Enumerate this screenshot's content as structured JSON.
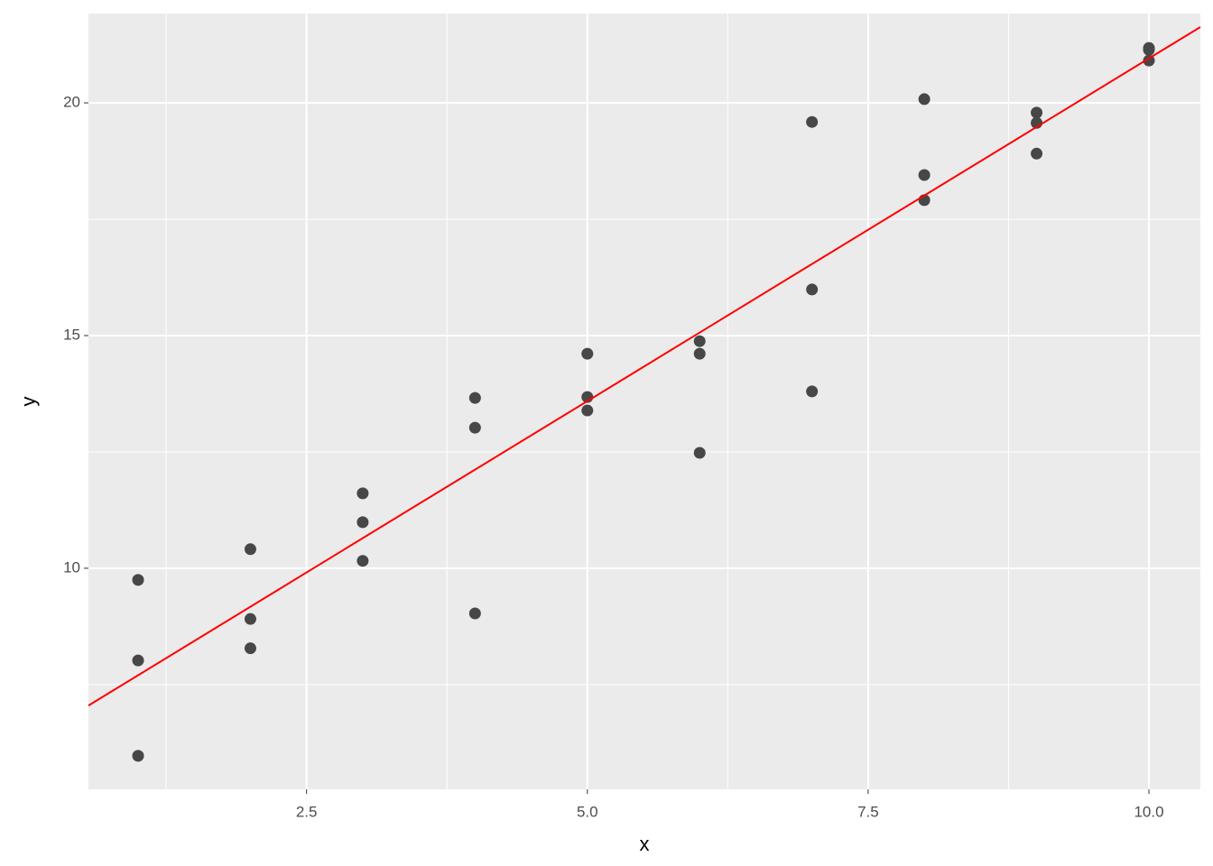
{
  "chart_data": {
    "type": "scatter",
    "x_label": "x",
    "y_label": "y",
    "x": [
      1,
      1,
      1,
      2,
      2,
      2,
      3,
      3,
      3,
      4,
      4,
      4,
      5,
      5,
      5,
      6,
      6,
      6,
      7,
      7,
      7,
      8,
      8,
      8,
      9,
      9,
      9,
      10,
      10,
      10
    ],
    "series": [
      {
        "color": "#474747",
        "values": [
          9.75,
          8.02,
          5.97,
          10.41,
          8.91,
          8.28,
          11.61,
          10.99,
          10.16,
          13.66,
          13.02,
          9.03,
          14.61,
          13.68,
          13.39,
          14.88,
          14.61,
          12.48,
          19.59,
          15.99,
          13.8,
          20.08,
          18.45,
          17.91,
          19.79,
          19.57,
          18.91,
          21.18,
          21.14,
          20.91
        ]
      }
    ],
    "fit_line": {
      "color": "#ff0000",
      "x": [
        0.558,
        10.458
      ],
      "y": [
        7.05,
        21.63
      ]
    },
    "xlim": [
      0.558,
      10.458
    ],
    "ylim": [
      5.25,
      21.92
    ],
    "xticks": [
      2.5,
      {
        "value": 5,
        "label": "5.0"
      },
      7.5,
      {
        "value": 10,
        "label": "10.0"
      }
    ],
    "yticks": [
      10,
      15,
      20
    ],
    "x_minor_grid": [
      1.25,
      3.75,
      6.25,
      8.75
    ],
    "y_minor_grid": [
      7.5,
      12.5,
      17.5
    ],
    "grid": true,
    "panel_color": "#ebebeb"
  }
}
